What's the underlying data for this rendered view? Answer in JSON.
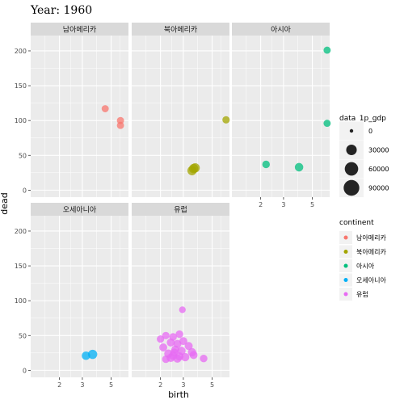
{
  "chart_data": {
    "type": "scatter",
    "title": "Year: 1960",
    "xlabel": "birth",
    "ylabel": "dead",
    "x_scale": "log",
    "x_ticks": [
      2,
      3,
      5
    ],
    "x_tick_labels": [
      "2",
      "3",
      "5"
    ],
    "y_ticks": [
      0,
      50,
      100,
      150,
      200
    ],
    "y_tick_labels": [
      "0",
      "50",
      "100",
      "150",
      "200"
    ],
    "xlim": [
      1.2,
      6.8
    ],
    "ylim": [
      -10,
      222
    ],
    "grid": true,
    "legend_position": "right",
    "size_legend": {
      "title": "data_1p_gdp",
      "labels": [
        "0",
        "30000",
        "60000",
        "90000"
      ],
      "values": [
        0,
        30000,
        60000,
        90000
      ]
    },
    "color_legend": {
      "title": "continent",
      "items": [
        {
          "label": "남아메리카",
          "color": "#F8766D"
        },
        {
          "label": "북아메리카",
          "color": "#A3A500"
        },
        {
          "label": "아시아",
          "color": "#00BF7D"
        },
        {
          "label": "오세아니아",
          "color": "#00B0F6"
        },
        {
          "label": "유럽",
          "color": "#E76BF3"
        }
      ]
    },
    "panels": [
      {
        "label": "남아메리카",
        "color": "#F8766D",
        "points": [
          {
            "x": 4.5,
            "y": 117,
            "gdp": 8000
          },
          {
            "x": 5.9,
            "y": 100,
            "gdp": 8000
          },
          {
            "x": 5.9,
            "y": 93,
            "gdp": 8000
          }
        ]
      },
      {
        "label": "북아메리카",
        "color": "#A3A500",
        "points": [
          {
            "x": 6.4,
            "y": 101,
            "gdp": 9000
          },
          {
            "x": 3.5,
            "y": 28,
            "gdp": 20000
          },
          {
            "x": 3.6,
            "y": 31,
            "gdp": 20000
          },
          {
            "x": 3.7,
            "y": 32,
            "gdp": 20000
          }
        ]
      },
      {
        "label": "아시아",
        "color": "#00BF7D",
        "points": [
          {
            "x": 6.5,
            "y": 201,
            "gdp": 8000
          },
          {
            "x": 6.5,
            "y": 96,
            "gdp": 8000
          },
          {
            "x": 2.2,
            "y": 37,
            "gdp": 10000
          },
          {
            "x": 3.95,
            "y": 33,
            "gdp": 15000
          }
        ]
      },
      {
        "label": "오세아니아",
        "color": "#00B0F6",
        "points": [
          {
            "x": 3.2,
            "y": 21,
            "gdp": 15000
          },
          {
            "x": 3.6,
            "y": 23,
            "gdp": 20000
          }
        ]
      },
      {
        "label": "유럽",
        "color": "#E76BF3",
        "points": [
          {
            "x": 2.95,
            "y": 87,
            "gdp": 6000
          },
          {
            "x": 2.0,
            "y": 45,
            "gdp": 9000
          },
          {
            "x": 2.2,
            "y": 50,
            "gdp": 9000
          },
          {
            "x": 2.5,
            "y": 48,
            "gdp": 10000
          },
          {
            "x": 2.8,
            "y": 52,
            "gdp": 10000
          },
          {
            "x": 2.4,
            "y": 40,
            "gdp": 12000
          },
          {
            "x": 2.7,
            "y": 38,
            "gdp": 12000
          },
          {
            "x": 3.0,
            "y": 42,
            "gdp": 12000
          },
          {
            "x": 3.3,
            "y": 35,
            "gdp": 12000
          },
          {
            "x": 2.1,
            "y": 33,
            "gdp": 12000
          },
          {
            "x": 2.6,
            "y": 30,
            "gdp": 12000
          },
          {
            "x": 2.9,
            "y": 28,
            "gdp": 14000
          },
          {
            "x": 3.5,
            "y": 26,
            "gdp": 14000
          },
          {
            "x": 2.3,
            "y": 24,
            "gdp": 14000
          },
          {
            "x": 2.5,
            "y": 21,
            "gdp": 14000
          },
          {
            "x": 2.8,
            "y": 20,
            "gdp": 14000
          },
          {
            "x": 3.1,
            "y": 19,
            "gdp": 14000
          },
          {
            "x": 2.4,
            "y": 18,
            "gdp": 14000
          },
          {
            "x": 2.7,
            "y": 17,
            "gdp": 14000
          },
          {
            "x": 4.3,
            "y": 17,
            "gdp": 10000
          },
          {
            "x": 3.6,
            "y": 22,
            "gdp": 12000
          },
          {
            "x": 2.2,
            "y": 16,
            "gdp": 10000
          },
          {
            "x": 2.55,
            "y": 26,
            "gdp": 10000
          }
        ]
      }
    ]
  }
}
